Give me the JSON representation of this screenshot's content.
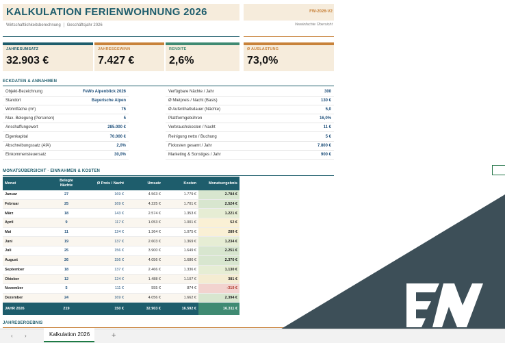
{
  "header": {
    "title": "KALKULATION FERIENWOHNUNG  2026",
    "code": "FW-2026-V2",
    "subtitle_left": "Wirtschaftlichkeitsberechnung",
    "subtitle_right": "Geschäftsjahr 2026",
    "note": "Vereinfachte Übersicht"
  },
  "kpis": [
    {
      "label": "JAHRESUMSATZ",
      "value": "32.903 €",
      "color": "#1e5d6c"
    },
    {
      "label": "JAHRESGEWINN",
      "value": "7.427 €",
      "color": "#c8823a"
    },
    {
      "label": "RENDITE",
      "value": "2,6%",
      "color": "#3f8a72"
    },
    {
      "label": "Ø AUSLASTUNG",
      "value": "73,0%",
      "color": "#c8823a"
    }
  ],
  "eckdaten": {
    "title": "ECKDATEN  &  ANNAHMEN",
    "left": [
      {
        "k": "Objekt-Bezeichnung",
        "v": "FeWo Alpenblick 2026"
      },
      {
        "k": "Standort",
        "v": "Bayerische Alpen"
      },
      {
        "k": "Wohnfläche (m²)",
        "v": "75"
      },
      {
        "k": "Max. Belegung (Personen)",
        "v": "5"
      },
      {
        "k": "Anschaffungswert",
        "v": "285.000 €"
      },
      {
        "k": "Eigenkapital",
        "v": "70.000 €"
      },
      {
        "k": "Abschreibungssatz (AfA)",
        "v": "2,0%"
      },
      {
        "k": "Einkommensteuersatz",
        "v": "30,0%"
      }
    ],
    "right": [
      {
        "k": "Verfügbare Nächte / Jahr",
        "v": "300"
      },
      {
        "k": "Ø Mietpreis / Nacht (Basis)",
        "v": "130 €"
      },
      {
        "k": "Ø Aufenthaltsdauer (Nächte)",
        "v": "5,0"
      },
      {
        "k": "Plattformgebühren",
        "v": "16,0%"
      },
      {
        "k": "Verbrauchskosten / Nacht",
        "v": "11 €"
      },
      {
        "k": "Reinigung netto / Buchung",
        "v": "5 €"
      },
      {
        "k": "Fixkosten gesamt / Jahr",
        "v": "7.800 €"
      },
      {
        "k": "Marketing & Sonstiges / Jahr",
        "v": "900 €"
      }
    ]
  },
  "monats": {
    "title": "MONATSÜBERSICHT  ·  EINNAHMEN & KOSTEN",
    "headers": {
      "monat": "Monat",
      "naechte_1": "Belegte",
      "naechte_2": "Nächte",
      "preis": "Ø Preis / Nacht",
      "umsatz": "Umsatz",
      "kosten": "Kosten",
      "ergebnis": "Monatsergebnis"
    },
    "rows": [
      {
        "monat": "Januar",
        "naechte": "27",
        "preis": "169 €",
        "umsatz": "4.563 €",
        "kosten": "1.779 €",
        "ergebnis": "2.784 €",
        "value": 2784
      },
      {
        "monat": "Februar",
        "naechte": "25",
        "preis": "169 €",
        "umsatz": "4.225 €",
        "kosten": "1.701 €",
        "ergebnis": "2.524 €",
        "value": 2524
      },
      {
        "monat": "März",
        "naechte": "18",
        "preis": "143 €",
        "umsatz": "2.574 €",
        "kosten": "1.353 €",
        "ergebnis": "1.221 €",
        "value": 1221
      },
      {
        "monat": "April",
        "naechte": "9",
        "preis": "117 €",
        "umsatz": "1.053 €",
        "kosten": "1.001 €",
        "ergebnis": "52 €",
        "value": 52
      },
      {
        "monat": "Mai",
        "naechte": "11",
        "preis": "124 €",
        "umsatz": "1.364 €",
        "kosten": "1.075 €",
        "ergebnis": "289 €",
        "value": 289
      },
      {
        "monat": "Juni",
        "naechte": "19",
        "preis": "137 €",
        "umsatz": "2.603 €",
        "kosten": "1.369 €",
        "ergebnis": "1.234 €",
        "value": 1234
      },
      {
        "monat": "Juli",
        "naechte": "25",
        "preis": "156 €",
        "umsatz": "3.900 €",
        "kosten": "1.649 €",
        "ergebnis": "2.251 €",
        "value": 2251
      },
      {
        "monat": "August",
        "naechte": "26",
        "preis": "156 €",
        "umsatz": "4.056 €",
        "kosten": "1.686 €",
        "ergebnis": "2.370 €",
        "value": 2370
      },
      {
        "monat": "September",
        "naechte": "18",
        "preis": "137 €",
        "umsatz": "2.466 €",
        "kosten": "1.336 €",
        "ergebnis": "1.130 €",
        "value": 1130
      },
      {
        "monat": "Oktober",
        "naechte": "12",
        "preis": "124 €",
        "umsatz": "1.488 €",
        "kosten": "1.107 €",
        "ergebnis": "381 €",
        "value": 381
      },
      {
        "monat": "November",
        "naechte": "5",
        "preis": "111 €",
        "umsatz": "555 €",
        "kosten": "874 €",
        "ergebnis": "-319 €",
        "value": -319
      },
      {
        "monat": "Dezember",
        "naechte": "24",
        "preis": "169 €",
        "umsatz": "4.056 €",
        "kosten": "1.662 €",
        "ergebnis": "2.394 €",
        "value": 2394
      }
    ],
    "sum": {
      "monat": "JAHR  2026",
      "naechte": "219",
      "preis": "150 €",
      "umsatz": "32.903 €",
      "kosten": "16.592 €",
      "ergebnis": "16.311 €"
    }
  },
  "jahres": {
    "title": "JAHRESERGEBNIS"
  },
  "tabs": {
    "sheet": "Kalkulation 2026",
    "add": "+",
    "prev": "‹",
    "next": "›"
  },
  "colors": {
    "teal": "#1e5d6c",
    "orange": "#c8823a",
    "green": "#3f8a72",
    "overlay": "#3d4f58"
  }
}
